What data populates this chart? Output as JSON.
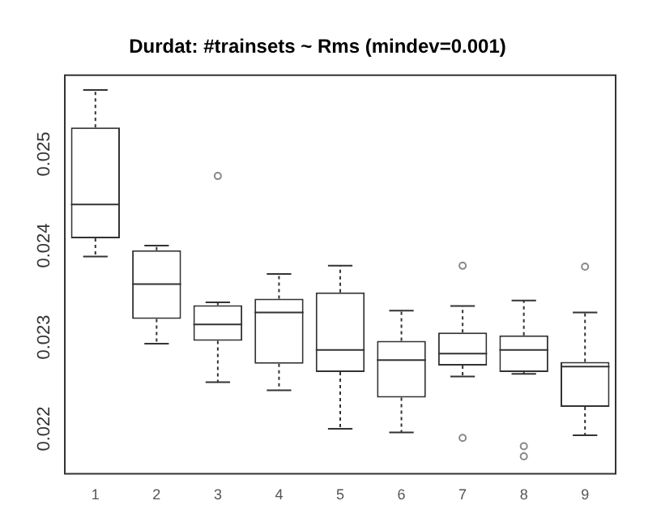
{
  "chart_data": {
    "type": "box",
    "title": "Durdat: #trainsets ~ Rms (mindev=0.001)",
    "categories": [
      "1",
      "2",
      "3",
      "4",
      "5",
      "6",
      "7",
      "8",
      "9"
    ],
    "boxes": [
      {
        "low": 0.02388,
        "q1": 0.02408,
        "median": 0.02445,
        "q3": 0.02529,
        "high": 0.0257
      },
      {
        "low": 0.02293,
        "q1": 0.0232,
        "median": 0.02358,
        "q3": 0.02395,
        "high": 0.024
      },
      {
        "low": 0.02251,
        "q1": 0.02296,
        "median": 0.02314,
        "q3": 0.02335,
        "high": 0.02338,
        "outliers": [
          0.02476
        ]
      },
      {
        "low": 0.02242,
        "q1": 0.02271,
        "median": 0.02327,
        "q3": 0.02342,
        "high": 0.02369
      },
      {
        "low": 0.022,
        "q1": 0.02262,
        "median": 0.02286,
        "q3": 0.02349,
        "high": 0.02378
      },
      {
        "low": 0.02196,
        "q1": 0.02234,
        "median": 0.02275,
        "q3": 0.02296,
        "high": 0.02329
      },
      {
        "low": 0.02257,
        "q1": 0.02269,
        "median": 0.02282,
        "q3": 0.02305,
        "high": 0.02334,
        "outliers": [
          0.02378,
          0.0219
        ]
      },
      {
        "low": 0.0226,
        "q1": 0.02262,
        "median": 0.02286,
        "q3": 0.02302,
        "high": 0.0234,
        "outliers": [
          0.02181,
          0.0217
        ]
      },
      {
        "low": 0.02193,
        "q1": 0.02224,
        "median": 0.02268,
        "q3": 0.02273,
        "high": 0.02327,
        "outliers": [
          0.02377
        ]
      }
    ],
    "color": "#333333",
    "ylim": [
      0.02151,
      0.02586
    ],
    "yticks": [
      0.022,
      0.023,
      0.024,
      0.025
    ],
    "grid": false,
    "legend": false
  }
}
